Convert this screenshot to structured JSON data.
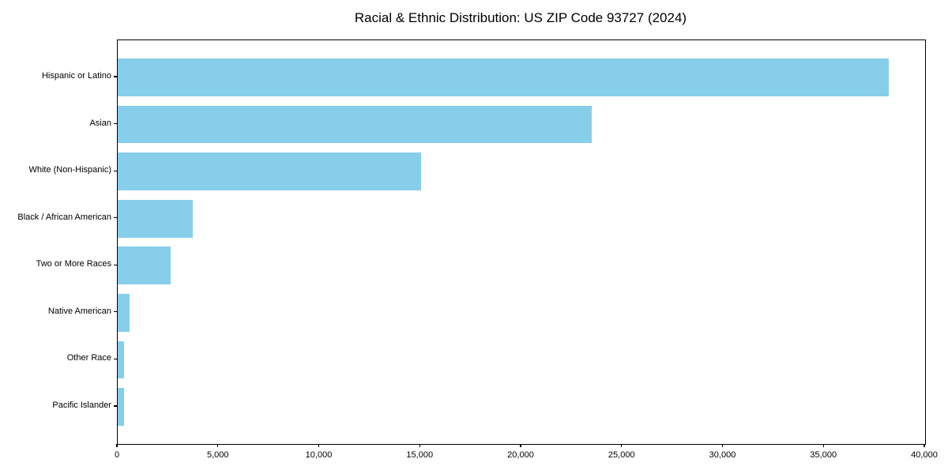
{
  "chart_data": {
    "type": "bar",
    "orientation": "horizontal",
    "title": "Racial & Ethnic Distribution: US ZIP Code 93727 (2024)",
    "categories": [
      "Hispanic or Latino",
      "Asian",
      "White (Non-Hispanic)",
      "Black / African American",
      "Two or More Races",
      "Native American",
      "Other Race",
      "Pacific Islander"
    ],
    "values": [
      38200,
      23500,
      15040,
      3700,
      2630,
      580,
      320,
      300
    ],
    "xlabel": "",
    "ylabel": "",
    "xlim": [
      0,
      40000
    ],
    "x_ticks": [
      0,
      5000,
      10000,
      15000,
      20000,
      25000,
      30000,
      35000,
      40000
    ],
    "x_tick_labels": [
      "0",
      "5,000",
      "10,000",
      "15,000",
      "20,000",
      "25,000",
      "30,000",
      "35,000",
      "40,000"
    ],
    "bar_color": "#87CEEB",
    "axis_color": "#000000",
    "text_color": "#000000",
    "background_color": "#ffffff",
    "grid": false,
    "legend": null
  }
}
